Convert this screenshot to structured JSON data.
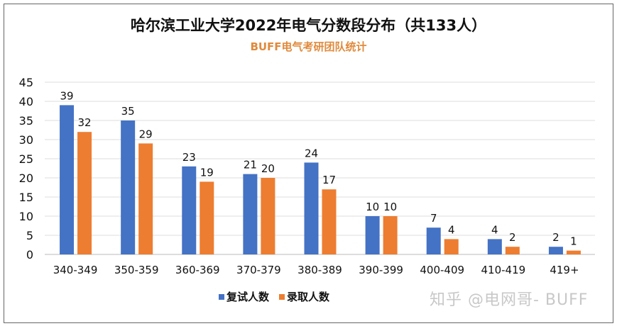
{
  "chart_data": {
    "type": "bar",
    "title": "哈尔滨工业大学2022年电气分数段分布（共133人）",
    "subtitle": "BUFF电气考研团队统计",
    "categories": [
      "340-349",
      "350-359",
      "360-369",
      "370-379",
      "380-389",
      "390-399",
      "400-409",
      "410-419",
      "419+"
    ],
    "series": [
      {
        "name": "复试人数",
        "color": "#4472C4",
        "values": [
          39,
          35,
          23,
          21,
          24,
          10,
          7,
          4,
          2
        ]
      },
      {
        "name": "录取人数",
        "color": "#ED7D31",
        "values": [
          32,
          29,
          19,
          20,
          17,
          10,
          4,
          2,
          1
        ]
      }
    ],
    "ylim": [
      0,
      45
    ],
    "yticks": [
      0,
      5,
      10,
      15,
      20,
      25,
      30,
      35,
      40,
      45
    ],
    "grid": true,
    "legend": "bottom",
    "data_labels": true
  },
  "watermark": "知乎 @电网哥- BUFF"
}
